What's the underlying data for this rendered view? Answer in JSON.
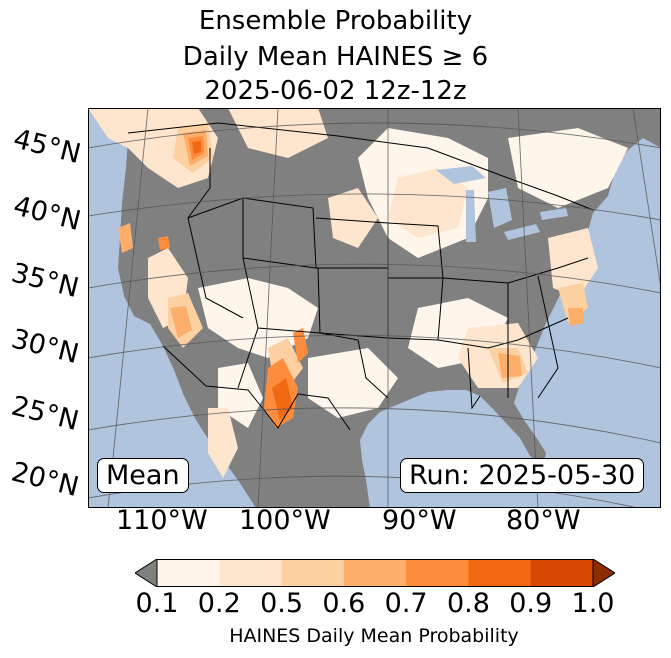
{
  "title": {
    "line1": "Ensemble Probability",
    "line2": "Daily Mean HAINES ≥ 6",
    "line3": "2025-06-02 12z-12z"
  },
  "map": {
    "lat_labels": [
      "45°N",
      "40°N",
      "35°N",
      "30°N",
      "25°N",
      "20°N"
    ],
    "lon_labels": [
      "110°W",
      "100°W",
      "90°W",
      "80°W"
    ],
    "stat_label": "Mean",
    "run_label": "Run: 2025-05-30",
    "colors": {
      "ocean": "#b0c4de",
      "land_no_data": "#808080",
      "borders": "#000000",
      "graticule": "#555555"
    }
  },
  "colorbar": {
    "ticks": [
      "0.1",
      "0.2",
      "0.5",
      "0.6",
      "0.7",
      "0.8",
      "0.9",
      "1.0"
    ],
    "colors": [
      "#fff5eb",
      "#fee6ce",
      "#fdd0a2",
      "#fdae6b",
      "#fd8d3c",
      "#f16913",
      "#d94801"
    ],
    "under_color": "#808080",
    "over_color": "#8c2d04",
    "label": "HAINES Daily Mean Probability"
  }
}
